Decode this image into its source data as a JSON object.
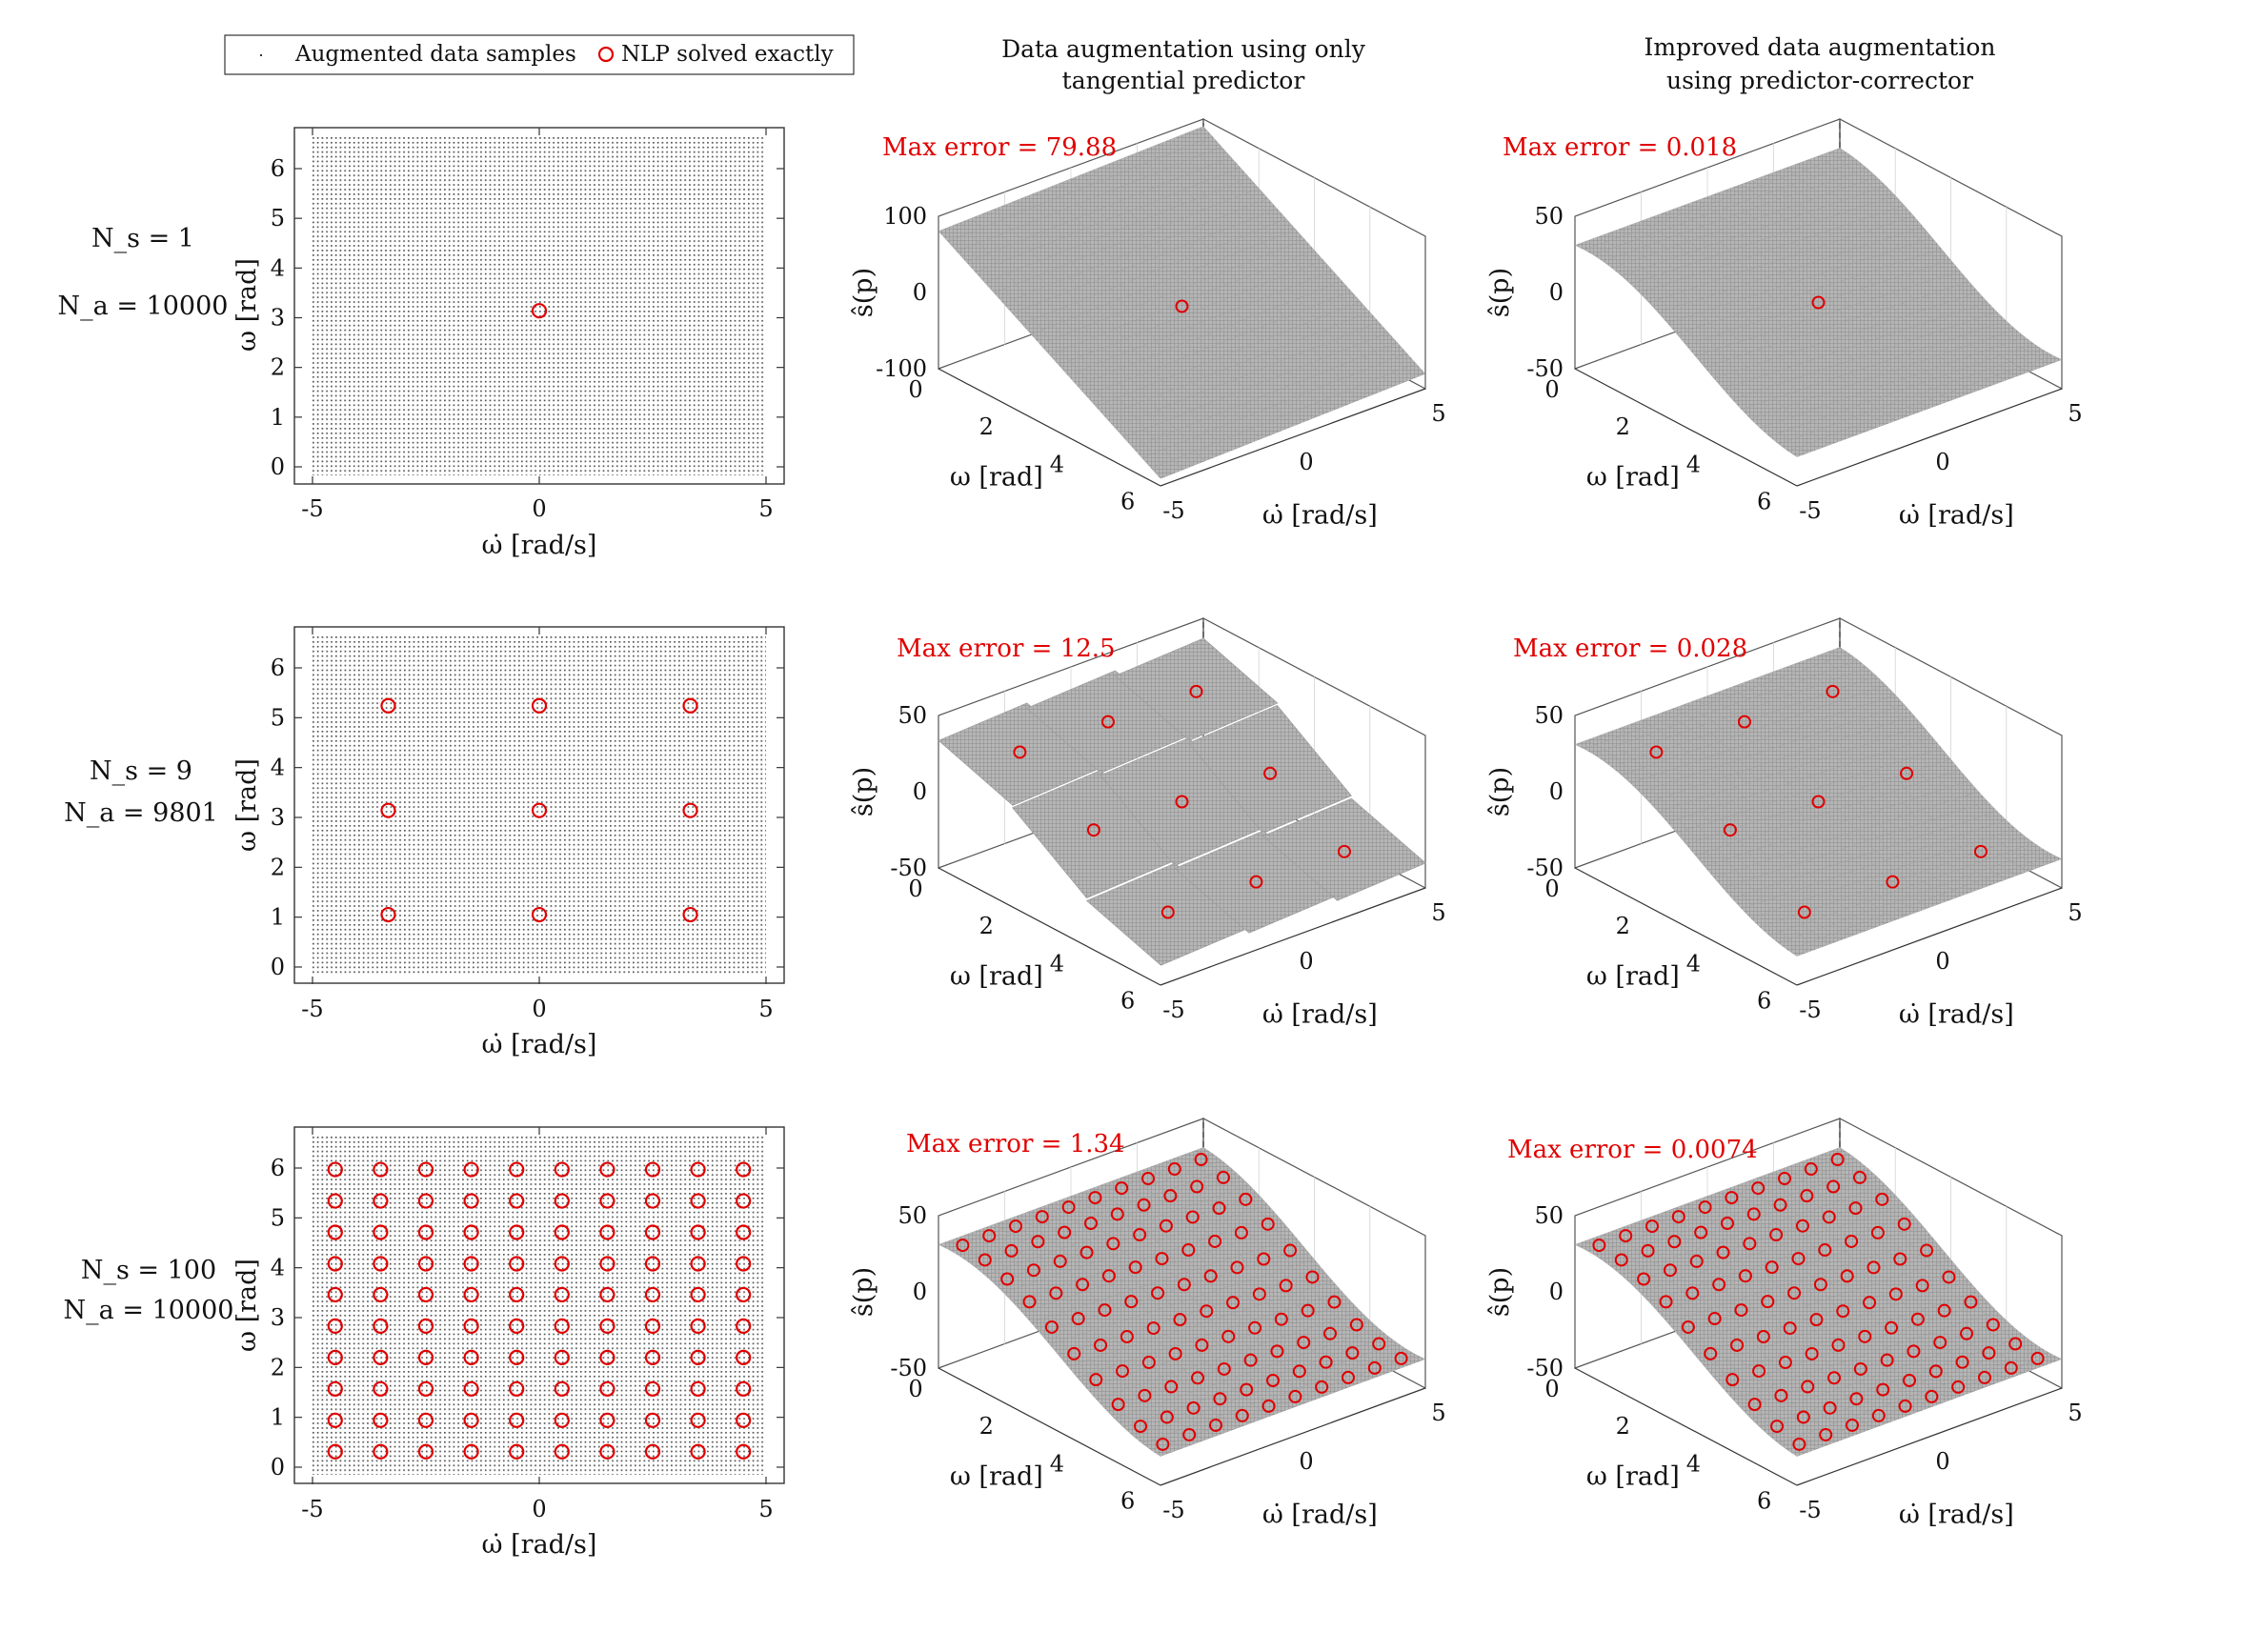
{
  "legend": {
    "items": [
      {
        "label": "Augmented data samples",
        "marker": "dot"
      },
      {
        "label": "NLP solved exactly",
        "marker": "red-circle"
      }
    ]
  },
  "column_titles": [
    {
      "line1": "Data augmentation using only",
      "line2": "tangential predictor"
    },
    {
      "line1": "Improved data augmentation",
      "line2": "using predictor-corrector"
    }
  ],
  "rows": [
    {
      "ns": "N_s = 1",
      "na": "N_a = 10000",
      "err_tangent": "Max error = 79.88",
      "err_corrector": "Max error = 0.018"
    },
    {
      "ns": "N_s = 9",
      "na": "N_a = 9801",
      "err_tangent": "Max error = 12.5",
      "err_corrector": "Max error = 0.028"
    },
    {
      "ns": "N_s = 100",
      "na": "N_a = 10000",
      "err_tangent": "Max error = 1.34",
      "err_corrector": "Max error = 0.0074"
    }
  ],
  "axes_labels": {
    "omega_dot": "ω̇ [rad/s]",
    "omega": "ω [rad]",
    "s_hat": "ŝ(p)"
  },
  "colors": {
    "nlp_marker": "#e00000",
    "surface": "#a9a9a9",
    "grid_dots": "#555555",
    "error_text": "#e00000"
  },
  "chart_data": [
    {
      "type": "scatter",
      "row": 0,
      "x_name": "ω̇",
      "y_name": "ω",
      "xlim": [
        -5,
        5
      ],
      "ylim": [
        0,
        6.28
      ],
      "xticks": [
        "-5",
        "0",
        "5"
      ],
      "yticks": [
        "0",
        "1",
        "2",
        "3",
        "4",
        "5",
        "6"
      ],
      "augmented_grid": [
        100,
        100
      ],
      "nlp_points": [
        [
          0,
          3.14
        ]
      ]
    },
    {
      "type": "scatter",
      "row": 1,
      "x_name": "ω̇",
      "y_name": "ω",
      "xlim": [
        -5,
        5
      ],
      "ylim": [
        0,
        6.28
      ],
      "xticks": [
        "-5",
        "0",
        "5"
      ],
      "yticks": [
        "0",
        "1",
        "2",
        "3",
        "4",
        "5",
        "6"
      ],
      "augmented_grid": [
        99,
        99
      ],
      "nlp_points": [
        [
          -3.33,
          1.05
        ],
        [
          0,
          1.05
        ],
        [
          3.33,
          1.05
        ],
        [
          -3.33,
          3.14
        ],
        [
          0,
          3.14
        ],
        [
          3.33,
          3.14
        ],
        [
          -3.33,
          5.24
        ],
        [
          0,
          5.24
        ],
        [
          3.33,
          5.24
        ]
      ]
    },
    {
      "type": "scatter",
      "row": 2,
      "x_name": "ω̇",
      "y_name": "ω",
      "xlim": [
        -5,
        5
      ],
      "ylim": [
        0,
        6.28
      ],
      "xticks": [
        "-5",
        "0",
        "5"
      ],
      "yticks": [
        "0",
        "1",
        "2",
        "3",
        "4",
        "5",
        "6"
      ],
      "augmented_grid": [
        100,
        100
      ],
      "nlp_grid": {
        "x": [
          -4.5,
          -3.5,
          -2.5,
          -1.5,
          -0.5,
          0.5,
          1.5,
          2.5,
          3.5,
          4.5
        ],
        "y": [
          0.31,
          0.94,
          1.57,
          2.2,
          2.83,
          3.46,
          4.08,
          4.71,
          5.34,
          5.97
        ]
      }
    },
    {
      "type": "surface",
      "row": 0,
      "method": "tangential predictor",
      "zlim": [
        -100,
        100
      ],
      "zticks": [
        "-100",
        "0",
        "100"
      ],
      "wticks": [
        "0",
        "2",
        "4",
        "6"
      ],
      "wdticks": [
        "-5",
        "0",
        "5"
      ],
      "model": "tangent plane at (0, π)",
      "nlp_points": [
        [
          0,
          3.14
        ]
      ]
    },
    {
      "type": "surface",
      "row": 0,
      "method": "predictor-corrector",
      "zlim": [
        -50,
        50
      ],
      "zticks": [
        "-50",
        "0",
        "50"
      ],
      "wticks": [
        "0",
        "2",
        "4",
        "6"
      ],
      "wdticks": [
        "-5",
        "0",
        "5"
      ],
      "model": "smooth sigmoid in ω",
      "nlp_points": [
        [
          0,
          3.14
        ]
      ]
    },
    {
      "type": "surface",
      "row": 1,
      "method": "tangential predictor",
      "zlim": [
        -50,
        50
      ],
      "zticks": [
        "-50",
        "0",
        "50"
      ],
      "wticks": [
        "0",
        "2",
        "4",
        "6"
      ],
      "wdticks": [
        "-5",
        "0",
        "5"
      ],
      "model": "9 local tangent patches",
      "nlp_points": [
        [
          -3.33,
          1.05
        ],
        [
          0,
          1.05
        ],
        [
          3.33,
          1.05
        ],
        [
          -3.33,
          3.14
        ],
        [
          0,
          3.14
        ],
        [
          3.33,
          3.14
        ],
        [
          -3.33,
          5.24
        ],
        [
          0,
          5.24
        ],
        [
          3.33,
          5.24
        ]
      ]
    },
    {
      "type": "surface",
      "row": 1,
      "method": "predictor-corrector",
      "zlim": [
        -50,
        50
      ],
      "zticks": [
        "-50",
        "0",
        "50"
      ],
      "wticks": [
        "0",
        "2",
        "4",
        "6"
      ],
      "wdticks": [
        "-5",
        "0",
        "5"
      ],
      "model": "smooth sigmoid in ω",
      "nlp_points": [
        [
          -3.33,
          1.05
        ],
        [
          0,
          1.05
        ],
        [
          3.33,
          1.05
        ],
        [
          -3.33,
          3.14
        ],
        [
          0,
          3.14
        ],
        [
          3.33,
          3.14
        ],
        [
          -3.33,
          5.24
        ],
        [
          0,
          5.24
        ],
        [
          3.33,
          5.24
        ]
      ]
    },
    {
      "type": "surface",
      "row": 2,
      "method": "tangential predictor",
      "zlim": [
        -50,
        50
      ],
      "zticks": [
        "-50",
        "0",
        "50"
      ],
      "wticks": [
        "0",
        "2",
        "4",
        "6"
      ],
      "wdticks": [
        "-5",
        "0",
        "5"
      ],
      "model": "smooth sigmoid in ω",
      "nlp_grid": {
        "x": [
          -4.5,
          -3.5,
          -2.5,
          -1.5,
          -0.5,
          0.5,
          1.5,
          2.5,
          3.5,
          4.5
        ],
        "y": [
          0.31,
          0.94,
          1.57,
          2.2,
          2.83,
          3.46,
          4.08,
          4.71,
          5.34,
          5.97
        ]
      }
    },
    {
      "type": "surface",
      "row": 2,
      "method": "predictor-corrector",
      "zlim": [
        -50,
        50
      ],
      "zticks": [
        "-50",
        "0",
        "50"
      ],
      "wticks": [
        "0",
        "2",
        "4",
        "6"
      ],
      "wdticks": [
        "-5",
        "0",
        "5"
      ],
      "model": "smooth sigmoid in ω",
      "nlp_grid": {
        "x": [
          -4.5,
          -3.5,
          -2.5,
          -1.5,
          -0.5,
          0.5,
          1.5,
          2.5,
          3.5,
          4.5
        ],
        "y": [
          0.31,
          0.94,
          1.57,
          2.2,
          2.83,
          3.46,
          4.08,
          4.71,
          5.34,
          5.97
        ]
      }
    }
  ]
}
